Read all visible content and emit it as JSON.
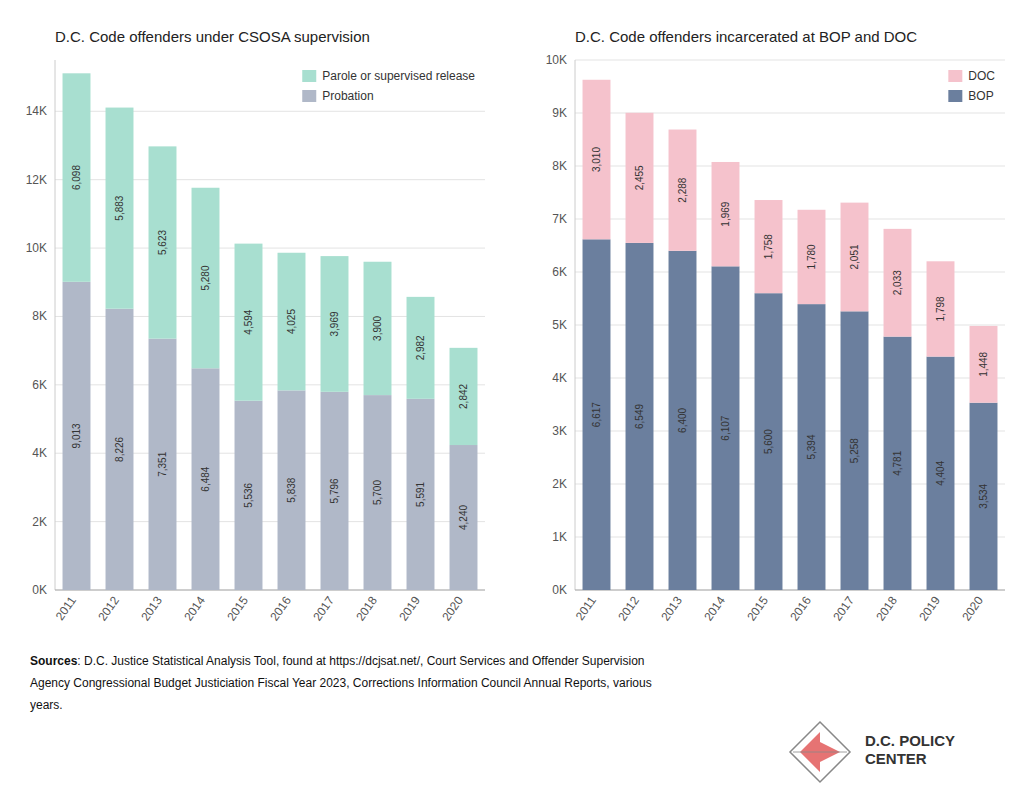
{
  "chart_data": [
    {
      "type": "bar",
      "stacked": true,
      "title": "D.C. Code offenders under CSOSA supervision",
      "categories": [
        "2011",
        "2012",
        "2013",
        "2014",
        "2015",
        "2016",
        "2017",
        "2018",
        "2019",
        "2020"
      ],
      "series": [
        {
          "name": "Probation",
          "color": "#b0b8c8",
          "values": [
            9013,
            8226,
            7351,
            6484,
            5536,
            5838,
            5796,
            5700,
            5591,
            4240
          ],
          "value_labels": [
            "9,013",
            "8,226",
            "7,351",
            "6,484",
            "5,536",
            "5,838",
            "5,796",
            "5,700",
            "5,591",
            "4,240"
          ]
        },
        {
          "name": "Parole or supervised release",
          "color": "#a8dfd0",
          "values": [
            6098,
            5883,
            5623,
            5280,
            4594,
            4025,
            3969,
            3900,
            2982,
            2842
          ],
          "value_labels": [
            "6,098",
            "5,883",
            "5,623",
            "5,280",
            "4,594",
            "4,025",
            "3,969",
            "3,900",
            "2,982",
            "2,842"
          ]
        }
      ],
      "ylim": [
        0,
        15500
      ],
      "yticks": [
        {
          "value": 0,
          "label": "0K"
        },
        {
          "value": 2000,
          "label": "2K"
        },
        {
          "value": 4000,
          "label": "4K"
        },
        {
          "value": 6000,
          "label": "6K"
        },
        {
          "value": 8000,
          "label": "8K"
        },
        {
          "value": 10000,
          "label": "10K"
        },
        {
          "value": 12000,
          "label": "12K"
        },
        {
          "value": 14000,
          "label": "14K"
        }
      ],
      "grid": true,
      "legend": "upper-right",
      "data_labels": true
    },
    {
      "type": "bar",
      "stacked": true,
      "title": "D.C. Code offenders incarcerated at BOP and DOC",
      "categories": [
        "2011",
        "2012",
        "2013",
        "2014",
        "2015",
        "2016",
        "2017",
        "2018",
        "2019",
        "2020"
      ],
      "series": [
        {
          "name": "BOP",
          "color": "#6b7f9e",
          "values": [
            6617,
            6549,
            6400,
            6107,
            5600,
            5394,
            5258,
            4781,
            4404,
            3534
          ],
          "value_labels": [
            "6,617",
            "6,549",
            "6,400",
            "6,107",
            "5,600",
            "5,394",
            "5,258",
            "4,781",
            "4,404",
            "3,534"
          ]
        },
        {
          "name": "DOC",
          "color": "#f5c2cc",
          "values": [
            3010,
            2455,
            2288,
            1969,
            1758,
            1780,
            2051,
            2033,
            1798,
            1448
          ],
          "value_labels": [
            "3,010",
            "2,455",
            "2,288",
            "1,969",
            "1,758",
            "1,780",
            "2,051",
            "2,033",
            "1,798",
            "1,448"
          ]
        }
      ],
      "ylim": [
        0,
        10000
      ],
      "yticks": [
        {
          "value": 0,
          "label": "0K"
        },
        {
          "value": 1000,
          "label": "1K"
        },
        {
          "value": 2000,
          "label": "2K"
        },
        {
          "value": 3000,
          "label": "3K"
        },
        {
          "value": 4000,
          "label": "4K"
        },
        {
          "value": 5000,
          "label": "5K"
        },
        {
          "value": 6000,
          "label": "6K"
        },
        {
          "value": 7000,
          "label": "7K"
        },
        {
          "value": 8000,
          "label": "8K"
        },
        {
          "value": 9000,
          "label": "9K"
        },
        {
          "value": 10000,
          "label": "10K"
        }
      ],
      "grid": true,
      "legend": "upper-right",
      "data_labels": true,
      "annotations": [
        "Sources",
        ": D.C. Justice Statistical Analysis Tool, found at https://dcjsat.net/, Court Services and Offender Supervision",
        "Agency Congressional Budget Justiciation Fiscal Year 2023, Corrections Information Council Annual Reports, various",
        "years.",
        "D.C. POLICY",
        "CENTER"
      ]
    }
  ]
}
